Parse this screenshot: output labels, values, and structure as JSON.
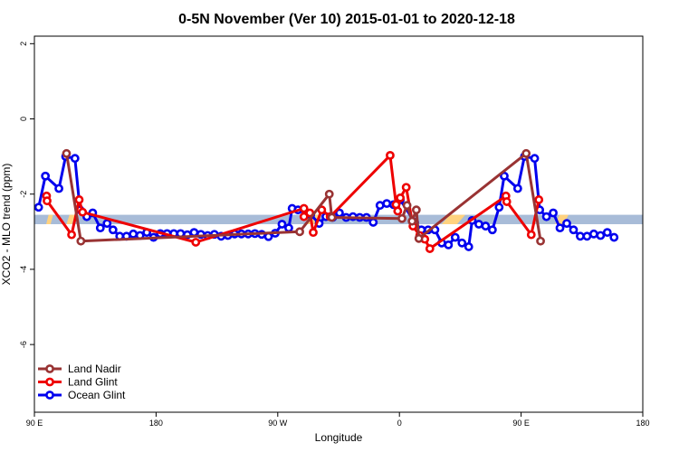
{
  "chart_data": {
    "type": "line",
    "title": "0-5N November (Ver 10)   2015-01-01 to 2020-12-18",
    "xlabel": "Longitude",
    "ylabel": "XCO2 - MLO trend (ppm)",
    "xlim": [
      90,
      450
    ],
    "ylim": [
      -7.8,
      2.2
    ],
    "x_ticks": [
      {
        "value": 90,
        "label": "90 E"
      },
      {
        "value": 162,
        "label": "180"
      },
      {
        "value": 234,
        "label": "90 W"
      },
      {
        "value": 306,
        "label": "0"
      },
      {
        "value": 378,
        "label": "90 E"
      },
      {
        "value": 450,
        "label": "180"
      }
    ],
    "y_ticks": [
      {
        "value": 2,
        "label": "2"
      },
      {
        "value": 0,
        "label": "0"
      },
      {
        "value": -2,
        "label": "-2"
      },
      {
        "value": -4,
        "label": "-4"
      },
      {
        "value": -6,
        "label": "-6"
      }
    ],
    "band": {
      "y_low": -2.8,
      "y_high": -2.55,
      "color": "#a8bcd8"
    },
    "band_highlights": {
      "color": "#ffd27f",
      "x_ranges": [
        [
          97,
          101
        ],
        [
          109,
          114
        ],
        [
          250,
          259
        ],
        [
          331,
          345
        ],
        [
          385,
          387
        ],
        [
          398,
          406
        ]
      ]
    },
    "legend": {
      "position": "bottom-left"
    },
    "series": [
      {
        "name": "Ocean Glint",
        "color": "#0000ee",
        "points": [
          [
            92.5,
            -2.35
          ],
          [
            96.5,
            -1.52
          ],
          [
            104.5,
            -1.85
          ],
          [
            108.5,
            -1.0
          ],
          [
            114,
            -1.05
          ],
          [
            117,
            -2.42
          ],
          [
            121,
            -2.6
          ],
          [
            124.5,
            -2.5
          ],
          [
            129,
            -2.9
          ],
          [
            133,
            -2.78
          ],
          [
            136.5,
            -2.95
          ],
          [
            140.5,
            -3.12
          ],
          [
            144.5,
            -3.12
          ],
          [
            148.5,
            -3.06
          ],
          [
            152.5,
            -3.1
          ],
          [
            156.5,
            -3.02
          ],
          [
            160.5,
            -3.15
          ],
          [
            164.5,
            -3.05
          ],
          [
            168.5,
            -3.05
          ],
          [
            172.5,
            -3.05
          ],
          [
            176.5,
            -3.05
          ],
          [
            180.5,
            -3.08
          ],
          [
            184.5,
            -3.02
          ],
          [
            188.5,
            -3.07
          ],
          [
            192.5,
            -3.1
          ],
          [
            196.5,
            -3.07
          ],
          [
            200.5,
            -3.12
          ],
          [
            204.5,
            -3.1
          ],
          [
            208.5,
            -3.06
          ],
          [
            212.5,
            -3.06
          ],
          [
            216.5,
            -3.06
          ],
          [
            220.5,
            -3.05
          ],
          [
            224.5,
            -3.07
          ],
          [
            228.5,
            -3.13
          ],
          [
            232.5,
            -3.04
          ],
          [
            236.5,
            -2.8
          ],
          [
            240.5,
            -2.9
          ],
          [
            242.5,
            -2.38
          ],
          [
            246,
            -2.42
          ],
          [
            253.5,
            -2.55
          ],
          [
            258.5,
            -2.78
          ],
          [
            262.5,
            -2.6
          ],
          [
            266.5,
            -2.62
          ],
          [
            270.5,
            -2.5
          ],
          [
            274.5,
            -2.62
          ],
          [
            278.5,
            -2.6
          ],
          [
            282.5,
            -2.62
          ],
          [
            286.5,
            -2.62
          ],
          [
            290.5,
            -2.75
          ],
          [
            294.5,
            -2.3
          ],
          [
            298.5,
            -2.25
          ],
          [
            302.5,
            -2.28
          ],
          [
            306.5,
            -2.15
          ],
          [
            315,
            -2.75
          ],
          [
            319,
            -2.95
          ],
          [
            323,
            -2.95
          ],
          [
            327,
            -2.95
          ],
          [
            331,
            -3.3
          ],
          [
            335,
            -3.35
          ],
          [
            339,
            -3.15
          ],
          [
            343,
            -3.3
          ],
          [
            347,
            -3.4
          ],
          [
            349,
            -2.7
          ],
          [
            353,
            -2.8
          ],
          [
            357,
            -2.85
          ],
          [
            361,
            -2.95
          ],
          [
            365,
            -2.35
          ],
          [
            368,
            -1.52
          ],
          [
            376,
            -1.85
          ],
          [
            380,
            -1.0
          ],
          [
            386,
            -1.05
          ],
          [
            389,
            -2.42
          ],
          [
            393,
            -2.6
          ],
          [
            397,
            -2.5
          ],
          [
            401,
            -2.9
          ],
          [
            405,
            -2.78
          ],
          [
            409,
            -2.95
          ],
          [
            413,
            -3.12
          ],
          [
            417,
            -3.12
          ],
          [
            421,
            -3.06
          ],
          [
            425,
            -3.1
          ],
          [
            429,
            -3.02
          ],
          [
            433,
            -3.15
          ]
        ]
      },
      {
        "name": "Land Glint",
        "color": "#ee0000",
        "points": [
          [
            97.2,
            -2.05
          ],
          [
            97.5,
            -2.18
          ],
          [
            112,
            -3.08
          ],
          [
            116.5,
            -2.15
          ],
          [
            118.5,
            -2.48
          ],
          [
            185.5,
            -3.28
          ],
          [
            249.5,
            -2.38
          ],
          [
            249.5,
            -2.6
          ],
          [
            253,
            -2.5
          ],
          [
            255,
            -3.02
          ],
          [
            260,
            -2.42
          ],
          [
            265,
            -2.6
          ],
          [
            300.5,
            -0.97
          ],
          [
            304,
            -2.28
          ],
          [
            305,
            -2.45
          ],
          [
            306.5,
            -2.1
          ],
          [
            310,
            -1.82
          ],
          [
            314,
            -2.85
          ],
          [
            318,
            -3.1
          ],
          [
            321,
            -3.2
          ],
          [
            324,
            -3.45
          ],
          [
            369,
            -2.05
          ],
          [
            369.5,
            -2.2
          ],
          [
            384,
            -3.08
          ],
          [
            388.5,
            -2.15
          ]
        ]
      },
      {
        "name": "Land Nadir",
        "color": "#993333",
        "points": [
          [
            109,
            -0.92
          ],
          [
            117.5,
            -3.25
          ],
          [
            247,
            -3.0
          ],
          [
            264.5,
            -2.0
          ],
          [
            266,
            -2.62
          ],
          [
            307.5,
            -2.65
          ],
          [
            310.5,
            -2.3
          ],
          [
            313.5,
            -2.72
          ],
          [
            316,
            -2.42
          ],
          [
            317.5,
            -3.18
          ],
          [
            381,
            -0.92
          ],
          [
            389.5,
            -3.25
          ]
        ]
      }
    ]
  }
}
